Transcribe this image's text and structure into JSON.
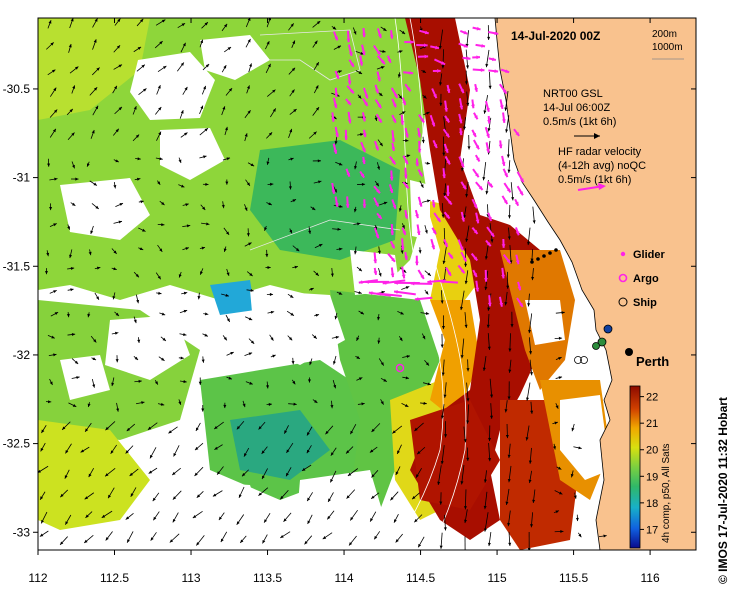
{
  "map": {
    "title": "14-Jul-2020 00Z",
    "isobaths": [
      "200m",
      "1000m"
    ],
    "x_axis": {
      "range": [
        112,
        116.3
      ],
      "ticks": [
        "112",
        "112.5",
        "113",
        "113.5",
        "114",
        "114.5",
        "115",
        "115.5",
        "116"
      ]
    },
    "y_axis": {
      "range": [
        -33.1,
        -30.1
      ],
      "ticks": [
        "-30.5",
        "-31",
        "-31.5",
        "-32",
        "-32.5",
        "-33"
      ]
    },
    "gsl_legend": {
      "line1": "NRT00 GSL",
      "line2": "14-Jul 06:00Z",
      "line3": "0.5m/s (1kt 6h)"
    },
    "hf_legend": {
      "line1": "HF radar velocity",
      "line2": "(4-12h avg) noQC",
      "line3": "0.5m/s (1kt 6h)"
    },
    "symbols": {
      "glider": "Glider",
      "argo": "Argo",
      "ship": "Ship"
    },
    "place": {
      "name": "Perth",
      "lon": 115.86,
      "lat": -31.95
    },
    "colorbar": {
      "ticks": [
        "22",
        "21",
        "20",
        "19",
        "18",
        "17"
      ],
      "caption": "4h comp, p50, All Sats"
    },
    "credit": "©  IMOS 17-Jul-2020 11:32 Hobart",
    "colors": {
      "land": "#f9c28e",
      "hf_vectors": "#ff22e8",
      "gsl_vectors": "#000000",
      "sst_warm": "#a80e00",
      "sst_mid": "#9fd82a",
      "sst_cool": "#28b060"
    }
  }
}
